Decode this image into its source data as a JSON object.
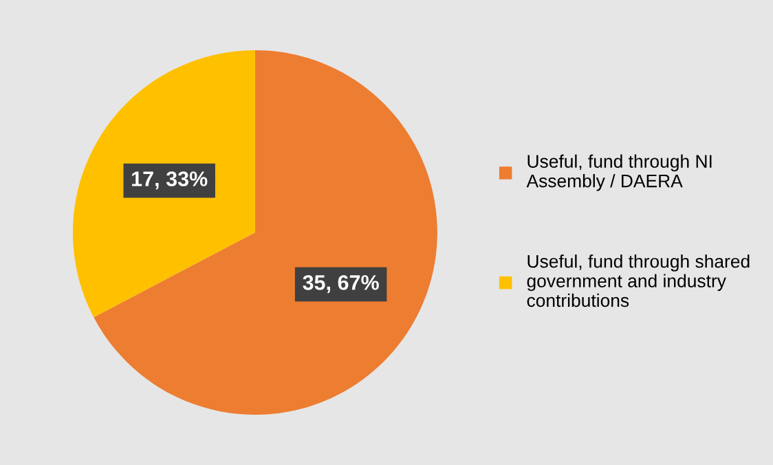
{
  "chart_data": {
    "type": "pie",
    "categories": [
      "Useful, fund through NI Assembly / DAERA",
      "Useful, fund through shared government and industry contributions"
    ],
    "values": [
      35,
      17
    ],
    "colors": [
      "#ed7d31",
      "#ffc000"
    ],
    "value_labels": [
      "35, 67%",
      "17, 33%"
    ],
    "legend": "right"
  }
}
